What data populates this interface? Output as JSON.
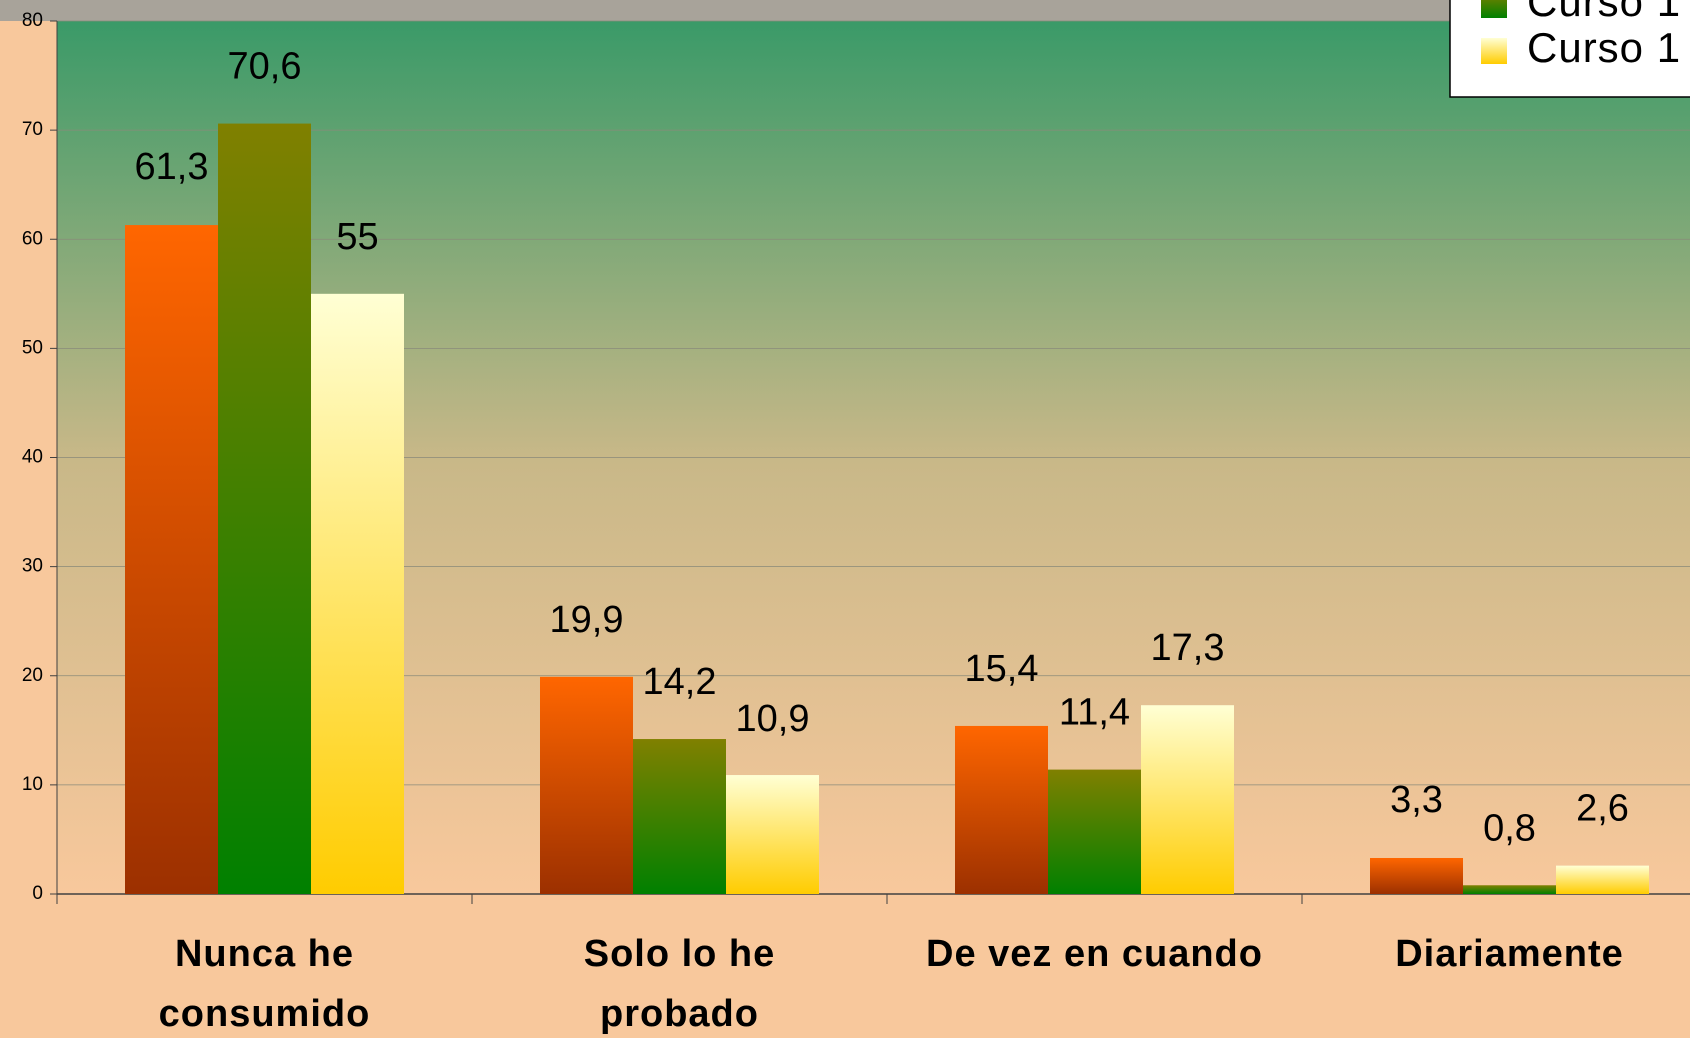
{
  "chart_data": {
    "type": "bar",
    "categories": [
      "Nunca he consumido",
      "Solo lo he probado",
      "De vez en cuando",
      "Diariamente"
    ],
    "series": [
      {
        "color": "#ff6600",
        "values": [
          61.3,
          19.9,
          15.4,
          3.3
        ],
        "value_labels": [
          "61,3",
          "19,9",
          "15,4",
          "3,3"
        ]
      },
      {
        "name": "Curso 1",
        "color": "#6f8a00",
        "values": [
          70.6,
          14.2,
          11.4,
          0.8
        ],
        "value_labels": [
          "70,6",
          "14,2",
          "11,4",
          "0,8"
        ]
      },
      {
        "name": "Curso 1",
        "color": "#ffe680",
        "values": [
          55,
          10.9,
          17.3,
          2.6
        ],
        "value_labels": [
          "55",
          "10,9",
          "17,3",
          "2,6"
        ]
      }
    ],
    "ylim": [
      0,
      80
    ],
    "yticks": [
      0,
      10,
      20,
      30,
      40,
      50,
      60,
      70,
      80
    ],
    "grid": true,
    "legend": "top-right"
  }
}
